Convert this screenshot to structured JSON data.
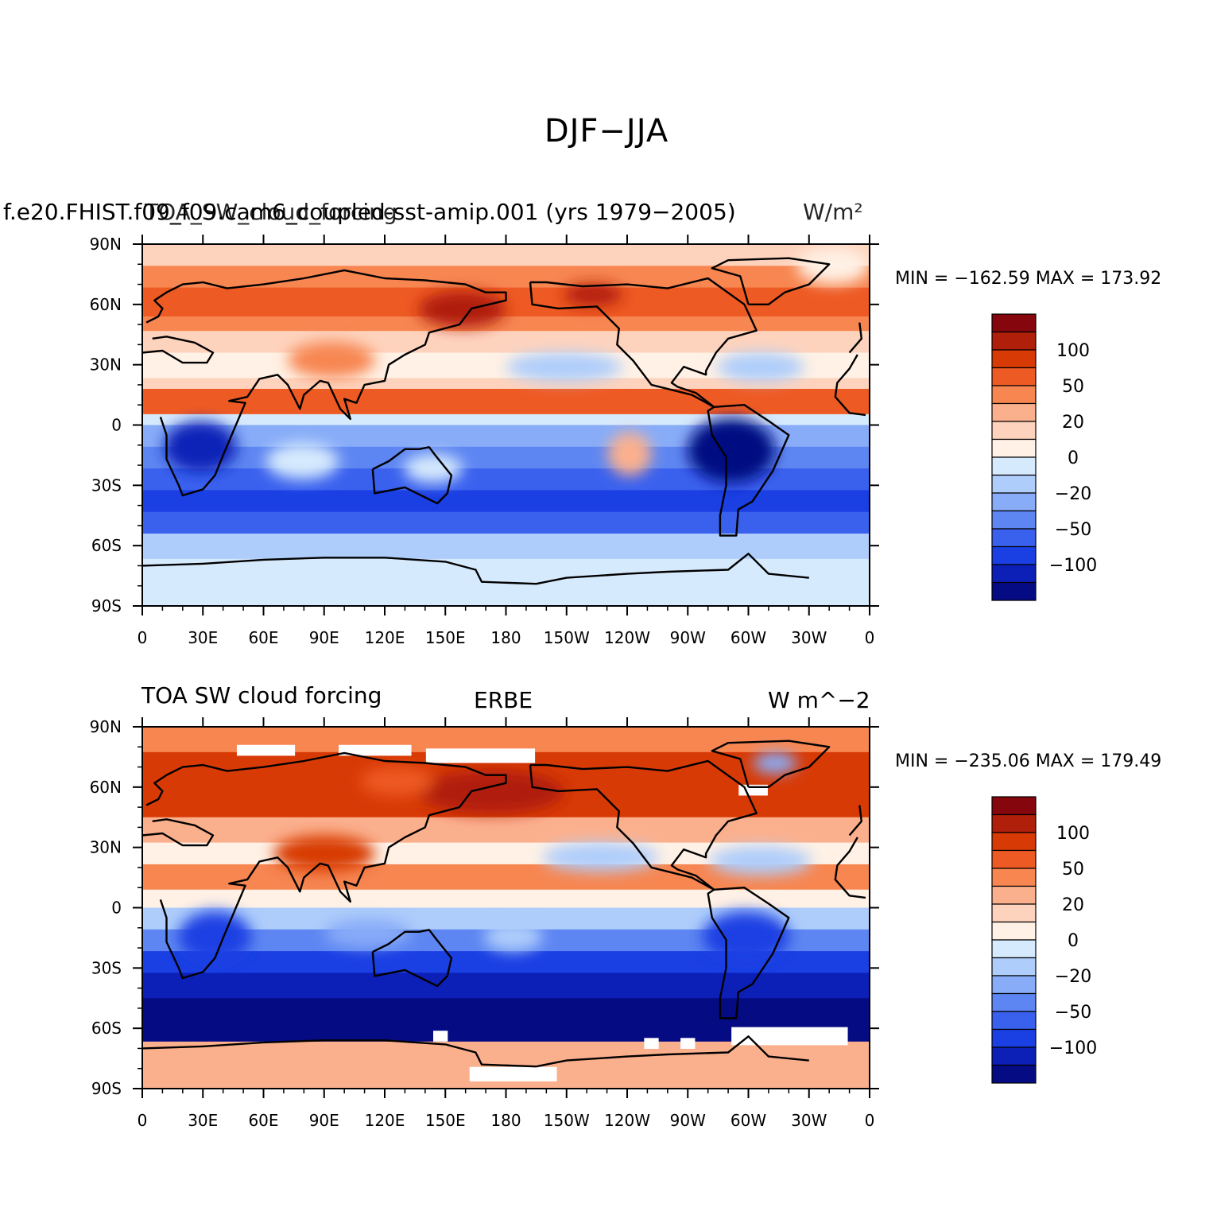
{
  "figure": {
    "title": "DJF−JJA"
  },
  "panels": [
    {
      "left_title": "f.e20.FHIST.f09_f09.cam6_coupled-sst-amip.001 (yrs 1979−2005)",
      "overlay_title": "TOA_SW_cloud_forcing",
      "right_title": "W/m²",
      "stats": "MIN = −162.59  MAX = 173.92"
    },
    {
      "left_title": "TOA SW cloud forcing",
      "center_title": "ERBE",
      "right_title": "W m^−2",
      "stats": "MIN = −235.06  MAX = 179.49"
    }
  ],
  "axes": {
    "lat_labels": [
      "90N",
      "60N",
      "30N",
      "0",
      "30S",
      "60S",
      "90S"
    ],
    "lon_labels": [
      "0",
      "30E",
      "60E",
      "90E",
      "120E",
      "150E",
      "180",
      "150W",
      "120W",
      "90W",
      "60W",
      "30W",
      "0"
    ]
  },
  "colorbar": {
    "colors": [
      "#85060c",
      "#b01f0a",
      "#d83a06",
      "#ee5a23",
      "#f78651",
      "#fbb08d",
      "#fed3bd",
      "#fff1e5",
      "#d6eafd",
      "#aecdfb",
      "#88acf8",
      "#5e86f2",
      "#3a61ee",
      "#1a3fe3",
      "#0c20b7",
      "#050b82"
    ],
    "labels": [
      "100",
      "50",
      "20",
      "0",
      "−20",
      "−50",
      "−100"
    ]
  },
  "chart_data": [
    {
      "type": "heatmap",
      "title": "DJF−JJA",
      "subtitle": "f.e20.FHIST.f09_f09.cam6_coupled-sst-amip.001 (yrs 1979−2005)",
      "xlabel": "",
      "ylabel": "",
      "units": "W/m²",
      "xlim": [
        0,
        360
      ],
      "ylim": [
        -90,
        90
      ],
      "min": -162.59,
      "max": 173.92,
      "color_levels": [
        100,
        50,
        20,
        0,
        -20,
        -50,
        -100
      ]
    },
    {
      "type": "heatmap",
      "title": "TOA SW cloud forcing",
      "subtitle": "ERBE",
      "xlabel": "",
      "ylabel": "",
      "units": "W m^−2",
      "xlim": [
        0,
        360
      ],
      "ylim": [
        -90,
        90
      ],
      "min": -235.06,
      "max": 179.49,
      "color_levels": [
        100,
        50,
        20,
        0,
        -20,
        -50,
        -100
      ]
    }
  ]
}
